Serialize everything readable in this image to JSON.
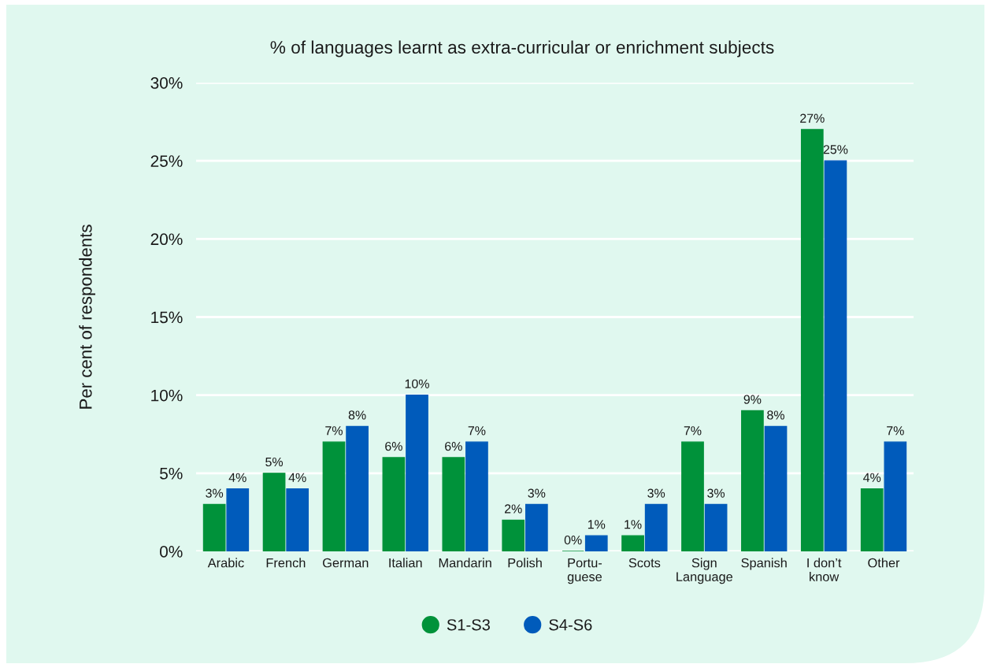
{
  "chart_data": {
    "type": "bar",
    "title": "% of languages learnt as extra-curricular or enrichment subjects",
    "ylabel": "Per cent of respondents",
    "categories": [
      "Arabic",
      "French",
      "German",
      "Italian",
      "Mandarin",
      "Polish",
      "Portu-\nguese",
      "Scots",
      "Sign\nLanguage",
      "Spanish",
      "I don’t\nknow",
      "Other"
    ],
    "series": [
      {
        "name": "S1-S3",
        "color": "#00923a",
        "values": [
          3,
          5,
          7,
          6,
          6,
          2,
          0,
          1,
          7,
          9,
          27,
          4
        ],
        "value_labels": [
          "3%",
          "5%",
          "7%",
          "6%",
          "6%",
          "2%",
          "0%",
          "1%",
          "7%",
          "9%",
          "27%",
          "4%"
        ]
      },
      {
        "name": "S4-S6",
        "color": "#005bbb",
        "values": [
          4,
          4,
          8,
          10,
          7,
          3,
          1,
          3,
          3,
          8,
          25,
          7
        ],
        "value_labels": [
          "4%",
          "4%",
          "8%",
          "10%",
          "7%",
          "3%",
          "1%",
          "3%",
          "3%",
          "8%",
          "25%",
          "7%"
        ]
      }
    ],
    "ylim": [
      0,
      30
    ],
    "yticks": [
      {
        "value": 0,
        "label": "0%"
      },
      {
        "value": 5,
        "label": "5%"
      },
      {
        "value": 10,
        "label": "10%"
      },
      {
        "value": 15,
        "label": "15%"
      },
      {
        "value": 20,
        "label": "20%"
      },
      {
        "value": 25,
        "label": "25%"
      },
      {
        "value": 30,
        "label": "30%"
      }
    ],
    "grid": "y",
    "legend": "bottom"
  }
}
